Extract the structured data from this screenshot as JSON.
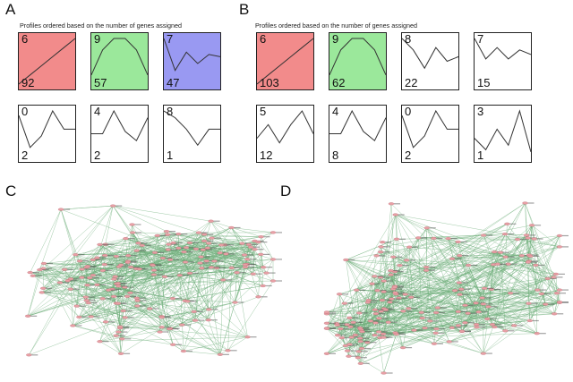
{
  "panels": {
    "A": {
      "letter": "A",
      "subtitle": "Profiles ordered based on the number of genes assigned"
    },
    "B": {
      "letter": "B",
      "subtitle": "Profiles ordered based on the number of genes assigned"
    },
    "C": {
      "letter": "C"
    },
    "D": {
      "letter": "D"
    }
  },
  "colors": {
    "red_fill": "#f28b8b",
    "green_fill": "#9be89b",
    "blue_fill": "#9999f2",
    "line": "#333333",
    "edge": "#6fae7a",
    "node": "#e8a0a6"
  },
  "profilesA": [
    {
      "id": "6",
      "count": "92",
      "fill": "red",
      "shape": [
        0.0,
        0.2,
        0.4,
        0.6,
        0.8,
        1.0
      ]
    },
    {
      "id": "9",
      "count": "57",
      "fill": "green",
      "shape": [
        0.2,
        0.75,
        1.0,
        1.0,
        0.75,
        0.2
      ]
    },
    {
      "id": "7",
      "count": "47",
      "fill": "blue",
      "shape": [
        1.0,
        0.3,
        0.7,
        0.45,
        0.65,
        0.6
      ]
    },
    {
      "id": "0",
      "count": "2",
      "fill": "none",
      "shape": [
        0.9,
        0.2,
        0.45,
        1.0,
        0.6,
        0.6
      ]
    },
    {
      "id": "4",
      "count": "2",
      "fill": "none",
      "shape": [
        0.5,
        0.5,
        1.0,
        0.55,
        0.35,
        0.85
      ]
    },
    {
      "id": "8",
      "count": "1",
      "fill": "none",
      "shape": [
        1.0,
        0.85,
        0.6,
        0.25,
        0.6,
        0.6
      ]
    }
  ],
  "profilesB": [
    {
      "id": "6",
      "count": "103",
      "fill": "red",
      "shape": [
        0.0,
        0.2,
        0.4,
        0.6,
        0.8,
        1.0
      ]
    },
    {
      "id": "9",
      "count": "62",
      "fill": "green",
      "shape": [
        0.2,
        0.75,
        1.0,
        1.0,
        0.75,
        0.2
      ]
    },
    {
      "id": "8",
      "count": "22",
      "fill": "none",
      "shape": [
        1.0,
        0.75,
        0.35,
        0.8,
        0.5,
        0.6
      ]
    },
    {
      "id": "7",
      "count": "15",
      "fill": "none",
      "shape": [
        1.0,
        0.55,
        0.8,
        0.55,
        0.75,
        0.65
      ]
    },
    {
      "id": "5",
      "count": "12",
      "fill": "none",
      "shape": [
        0.4,
        0.7,
        0.3,
        0.7,
        1.0,
        0.5
      ]
    },
    {
      "id": "4",
      "count": "8",
      "fill": "none",
      "shape": [
        0.5,
        0.5,
        1.0,
        0.55,
        0.35,
        0.85
      ]
    },
    {
      "id": "0",
      "count": "2",
      "fill": "none",
      "shape": [
        0.9,
        0.2,
        0.45,
        1.0,
        0.6,
        0.6
      ]
    },
    {
      "id": "3",
      "count": "1",
      "fill": "none",
      "shape": [
        0.4,
        0.15,
        0.6,
        0.25,
        1.0,
        0.1
      ]
    }
  ]
}
